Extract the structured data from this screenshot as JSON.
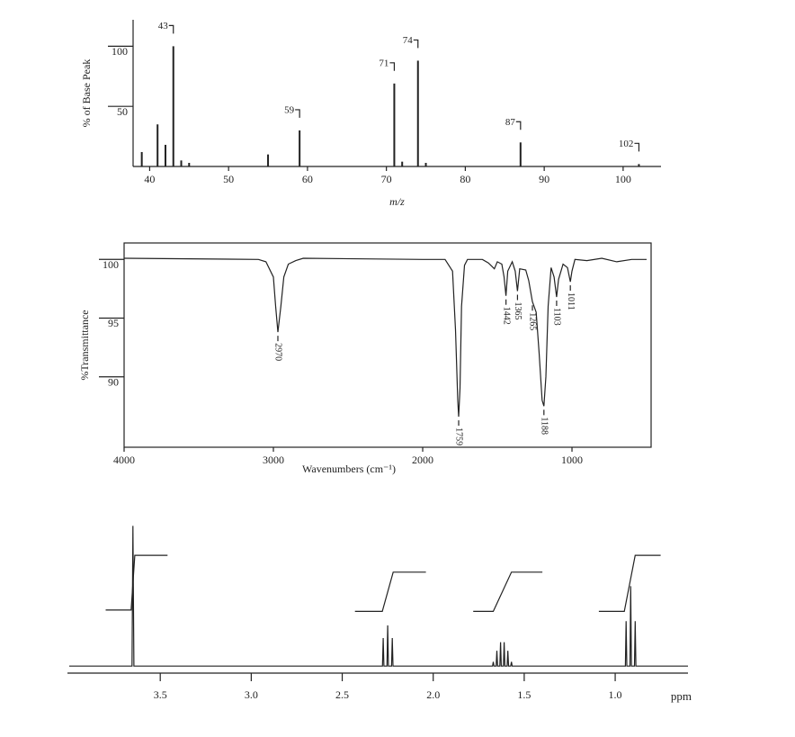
{
  "chart_data": [
    {
      "type": "bar",
      "ylabel": "% of Base Peak",
      "xlabel": "m/z",
      "x": [
        39,
        41,
        42,
        43,
        44,
        45,
        55,
        59,
        71,
        72,
        74,
        75,
        87,
        102
      ],
      "values": [
        12,
        35,
        18,
        100,
        5,
        3,
        10,
        30,
        69,
        4,
        88,
        3,
        20,
        2
      ],
      "color": "#222",
      "xlim": [
        37.9,
        104.8
      ],
      "ylim": [
        0,
        122
      ],
      "xticks": [
        40,
        50,
        60,
        70,
        80,
        90,
        100
      ],
      "yticks": [
        50,
        100
      ],
      "peak_labels": [
        43,
        59,
        71,
        74,
        87,
        102
      ]
    },
    {
      "type": "line",
      "ylabel": "%Transmittance",
      "xlabel": "Wavenumbers (cm⁻¹)",
      "series": [
        {
          "color": "#222",
          "x": [
            4000,
            3100,
            3050,
            3000,
            2985,
            2970,
            2950,
            2930,
            2900,
            2850,
            2800,
            2000,
            1850,
            1800,
            1780,
            1765,
            1759,
            1750,
            1740,
            1720,
            1700,
            1600,
            1560,
            1520,
            1500,
            1470,
            1455,
            1442,
            1430,
            1400,
            1380,
            1365,
            1350,
            1310,
            1290,
            1265,
            1240,
            1220,
            1200,
            1188,
            1175,
            1160,
            1140,
            1120,
            1103,
            1090,
            1060,
            1030,
            1011,
            1000,
            980,
            900,
            800,
            700,
            600,
            500
          ],
          "values": [
            100.1,
            100,
            99.8,
            98.5,
            96,
            93.8,
            96,
            98.5,
            99.6,
            99.9,
            100.1,
            100,
            100,
            99,
            94,
            88,
            86.6,
            89,
            96,
            99.5,
            100,
            100,
            99.7,
            99.2,
            99.8,
            99.6,
            98.5,
            96.9,
            99,
            99.8,
            99,
            97.3,
            99.2,
            99.1,
            98.2,
            96.4,
            95.5,
            92,
            88,
            87.5,
            90,
            96,
            99.3,
            98.5,
            96.8,
            98.3,
            99.6,
            99.3,
            98.1,
            99,
            100,
            99.9,
            100.1,
            99.8,
            100,
            100
          ]
        }
      ],
      "xlim": [
        4000,
        470
      ],
      "ylim": [
        84,
        101.4
      ],
      "xticks": [
        4000,
        3000,
        2000,
        1000
      ],
      "yticks": [
        90,
        95,
        100
      ],
      "peak_labels": [
        2970,
        1759,
        1442,
        1365,
        1265,
        1188,
        1103,
        1011
      ]
    },
    {
      "type": "line",
      "xlabel": "ppm",
      "series": [
        {
          "color": "#222",
          "x": [
            4.0,
            3.655,
            3.65,
            3.645,
            2.3,
            2.279,
            2.275,
            2.271,
            2.254,
            2.25,
            2.246,
            2.229,
            2.225,
            2.221,
            2.2,
            1.7,
            1.674,
            1.67,
            1.666,
            1.654,
            1.65,
            1.646,
            1.634,
            1.63,
            1.626,
            1.614,
            1.61,
            1.606,
            1.594,
            1.59,
            1.586,
            1.574,
            1.57,
            1.566,
            1.55,
            0.97,
            0.944,
            0.94,
            0.936,
            0.919,
            0.915,
            0.911,
            0.894,
            0.89,
            0.886,
            0.6
          ],
          "values": [
            0,
            0,
            100,
            0,
            0,
            0,
            20,
            0,
            0,
            29,
            0,
            0,
            20,
            0,
            0,
            0,
            0,
            3,
            0,
            0,
            11,
            0,
            0,
            17,
            0,
            0,
            17,
            0,
            0,
            11,
            0,
            0,
            3,
            0,
            0,
            0,
            0,
            32,
            0,
            0,
            57,
            0,
            0,
            32,
            0,
            0
          ]
        },
        {
          "color": "#222",
          "x": [
            3.8,
            3.66,
            3.64,
            3.46,
            3.0,
            2.43,
            2.28,
            2.22,
            2.04,
            1.9,
            1.78,
            1.67,
            1.57,
            1.4,
            1.2,
            1.09,
            0.95,
            0.89,
            0.75
          ],
          "values": [
            40,
            40,
            79,
            79,
            null,
            39,
            39,
            67,
            67,
            null,
            39,
            39,
            67,
            67,
            null,
            39,
            39,
            79,
            79
          ]
        }
      ],
      "xlim": [
        4.01,
        0.6
      ],
      "ylim": [
        -5,
        106
      ],
      "xticks": [
        {
          "value": 3.5,
          "label": "3.5"
        },
        {
          "value": 3,
          "label": "3.0"
        },
        {
          "value": 2.5,
          "label": "2.5"
        },
        {
          "value": 2,
          "label": "2.0"
        },
        {
          "value": 1.5,
          "label": "1.5"
        },
        {
          "value": 1,
          "label": "1.0"
        }
      ]
    }
  ]
}
